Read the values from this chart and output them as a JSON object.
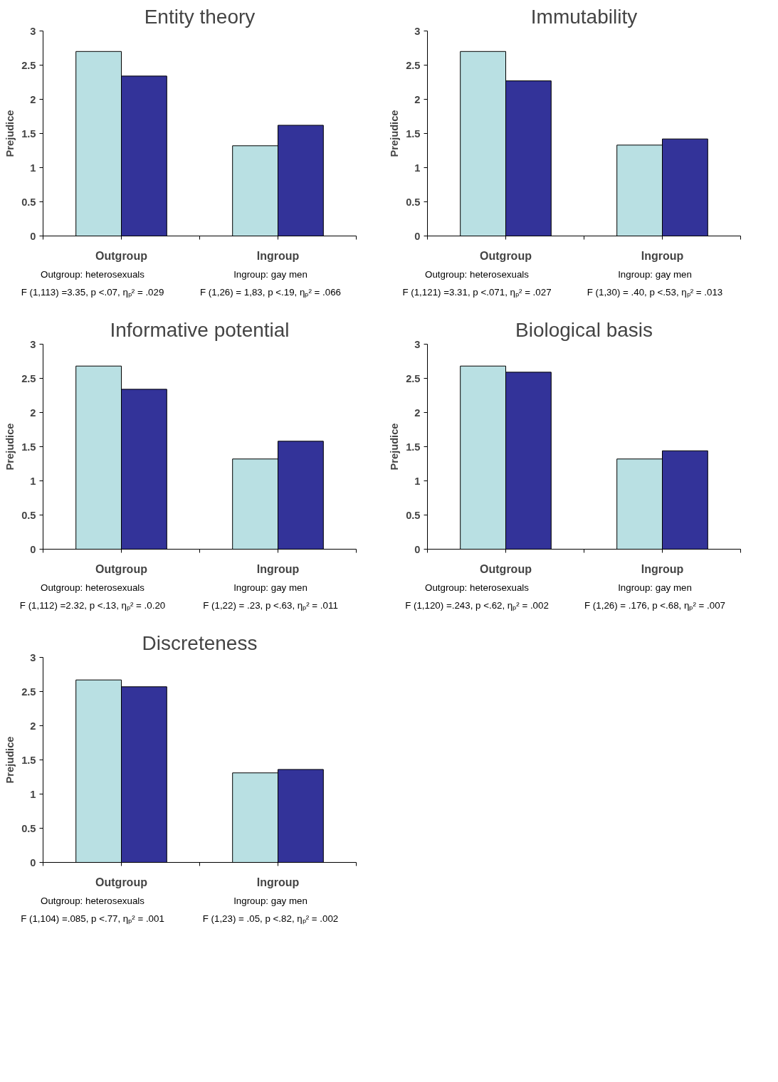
{
  "chart_data": [
    {
      "type": "bar",
      "title": "Entity theory",
      "ylabel": "Prejudice",
      "categories": [
        "Outgroup",
        "Ingroup"
      ],
      "series": [
        {
          "color": "#b9e0e3",
          "values": [
            2.7,
            1.32
          ]
        },
        {
          "color": "#333399",
          "values": [
            2.34,
            1.62
          ]
        }
      ],
      "ylim": [
        0,
        3
      ],
      "yticks": [
        0,
        0.5,
        1,
        1.5,
        2,
        2.5,
        3
      ],
      "grid": false,
      "annotations": [
        "Outgroup: heterosexuals",
        "Ingroup: gay men",
        "F (1,113) =3.35, p <.07, ηₚ² = .029",
        "F (1,26) = 1,83, p <.19, ηₚ² = .066"
      ]
    },
    {
      "type": "bar",
      "title": "Immutability",
      "ylabel": "Prejudice",
      "categories": [
        "Outgroup",
        "Ingroup"
      ],
      "series": [
        {
          "color": "#b9e0e3",
          "values": [
            2.7,
            1.33
          ]
        },
        {
          "color": "#333399",
          "values": [
            2.27,
            1.42
          ]
        }
      ],
      "ylim": [
        0,
        3
      ],
      "yticks": [
        0,
        0.5,
        1,
        1.5,
        2,
        2.5,
        3
      ],
      "grid": false,
      "annotations": [
        "Outgroup: heterosexuals",
        "Ingroup: gay men",
        "F (1,121) =3.31, p <.071, ηₚ² = .027",
        "F (1,30) = .40, p <.53, ηₚ² = .013"
      ]
    },
    {
      "type": "bar",
      "title": "Informative potential",
      "ylabel": "Prejudice",
      "categories": [
        "Outgroup",
        "Ingroup"
      ],
      "series": [
        {
          "color": "#b9e0e3",
          "values": [
            2.68,
            1.32
          ]
        },
        {
          "color": "#333399",
          "values": [
            2.34,
            1.58
          ]
        }
      ],
      "ylim": [
        0,
        3
      ],
      "yticks": [
        0,
        0.5,
        1,
        1.5,
        2,
        2.5,
        3
      ],
      "grid": false,
      "annotations": [
        "Outgroup: heterosexuals",
        "Ingroup: gay men",
        "F (1,112) =2.32, p <.13, ηₚ² = .0.20",
        "F (1,22) = .23, p <.63, ηₚ² = .011"
      ]
    },
    {
      "type": "bar",
      "title": "Biological basis",
      "ylabel": "Prejudice",
      "categories": [
        "Outgroup",
        "Ingroup"
      ],
      "series": [
        {
          "color": "#b9e0e3",
          "values": [
            2.68,
            1.32
          ]
        },
        {
          "color": "#333399",
          "values": [
            2.59,
            1.44
          ]
        }
      ],
      "ylim": [
        0,
        3
      ],
      "yticks": [
        0,
        0.5,
        1,
        1.5,
        2,
        2.5,
        3
      ],
      "grid": false,
      "annotations": [
        "Outgroup: heterosexuals",
        "Ingroup: gay men",
        "F (1,120) =.243, p <.62, ηₚ² = .002",
        "F (1,26) = .176, p <.68, ηₚ² = .007"
      ]
    },
    {
      "type": "bar",
      "title": "Discreteness",
      "ylabel": "Prejudice",
      "categories": [
        "Outgroup",
        "Ingroup"
      ],
      "series": [
        {
          "color": "#b9e0e3",
          "values": [
            2.67,
            1.31
          ]
        },
        {
          "color": "#333399",
          "values": [
            2.57,
            1.36
          ]
        }
      ],
      "ylim": [
        0,
        3
      ],
      "yticks": [
        0,
        0.5,
        1,
        1.5,
        2,
        2.5,
        3
      ],
      "grid": false,
      "annotations": [
        "Outgroup: heterosexuals",
        "Ingroup: gay men",
        "F (1,104) =.085, p <.77, ηₚ² = .001",
        "F (1,23) = .05, p <.82, ηₚ² = .002"
      ]
    }
  ]
}
